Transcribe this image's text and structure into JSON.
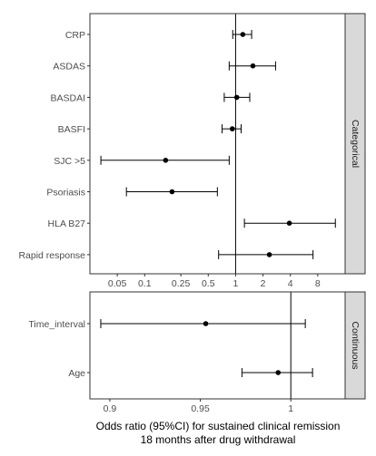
{
  "chart_data": [
    {
      "type": "forest",
      "facet_label": "Categorical",
      "x_scale": "log",
      "xlim": [
        0.025,
        16
      ],
      "reference_line": 1,
      "x_ticks": [
        0.05,
        0.1,
        0.25,
        0.5,
        1,
        2,
        4,
        8
      ],
      "x_tick_labels": [
        "0.05",
        "0.1",
        "0.25",
        "0.5",
        "1",
        "2",
        "4",
        "8"
      ],
      "grid": false,
      "rows": [
        {
          "label": "CRP",
          "or": 1.2,
          "lower": 0.93,
          "upper": 1.5
        },
        {
          "label": "ASDAS",
          "or": 1.55,
          "lower": 0.85,
          "upper": 2.75
        },
        {
          "label": "BASDAI",
          "or": 1.03,
          "lower": 0.75,
          "upper": 1.43
        },
        {
          "label": "BASFI",
          "or": 0.92,
          "lower": 0.71,
          "upper": 1.15
        },
        {
          "label": "SJC >5",
          "or": 0.17,
          "lower": 0.033,
          "upper": 0.85
        },
        {
          "label": "Psoriasis",
          "or": 0.2,
          "lower": 0.063,
          "upper": 0.63
        },
        {
          "label": "HLA B27",
          "or": 3.9,
          "lower": 1.25,
          "upper": 12.5
        },
        {
          "label": "Rapid response",
          "or": 2.35,
          "lower": 0.65,
          "upper": 7.1
        }
      ]
    },
    {
      "type": "forest",
      "facet_label": "Continuous",
      "x_scale": "linear",
      "xlim": [
        0.889,
        1.03
      ],
      "reference_line": 1,
      "x_ticks": [
        0.9,
        0.95,
        1
      ],
      "x_tick_labels": [
        "0.9",
        "0.95",
        "1"
      ],
      "grid": false,
      "rows": [
        {
          "label": "Time_interval",
          "or": 0.953,
          "lower": 0.895,
          "upper": 1.008
        },
        {
          "label": "Age",
          "or": 0.993,
          "lower": 0.973,
          "upper": 1.012
        }
      ]
    }
  ],
  "x_axis_title": {
    "line1": "Odds ratio (95%CI) for sustained clinical remission",
    "line2": "18 months after drug withdrawal"
  },
  "colors": {
    "points": "#000000",
    "whiskers": "#000000",
    "reference_line": "#000000",
    "panel_border": "#333333",
    "strip_fill": "#d9d9d9"
  }
}
